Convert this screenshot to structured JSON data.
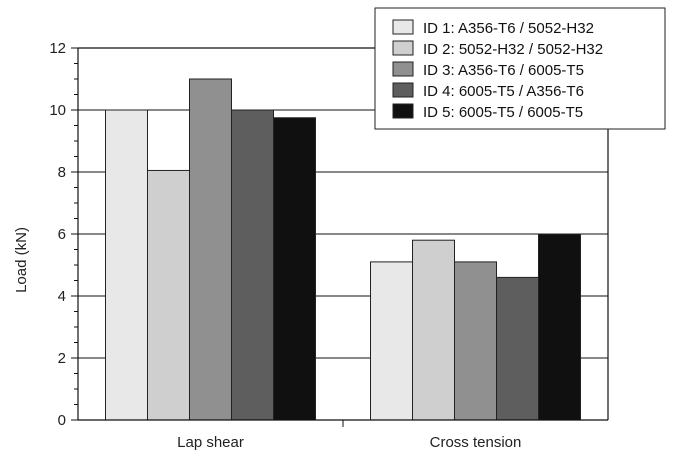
{
  "chart_data": {
    "type": "bar",
    "ylabel": "Load (kN)",
    "ylim": [
      0,
      12
    ],
    "yticks": [
      "0",
      "2",
      "4",
      "6",
      "8",
      "10",
      "12"
    ],
    "categories": [
      "Lap shear",
      "Cross tension"
    ],
    "grid": "horizontal",
    "legend_position": "top-right",
    "series": [
      {
        "name": "ID 1:  A356-T6 / 5052-H32",
        "color": "#e8e8e8",
        "values": [
          10.0,
          5.1
        ]
      },
      {
        "name": "ID 2:  5052-H32 / 5052-H32",
        "color": "#cfcfcf",
        "values": [
          8.05,
          5.8
        ]
      },
      {
        "name": "ID 3:  A356-T6 / 6005-T5",
        "color": "#909090",
        "values": [
          11.0,
          5.1
        ]
      },
      {
        "name": "ID 4:  6005-T5 / A356-T6",
        "color": "#5e5e5e",
        "values": [
          10.0,
          4.6
        ]
      },
      {
        "name": "ID 5:  6005-T5 / 6005-T5",
        "color": "#101010",
        "values": [
          9.75,
          6.0
        ]
      }
    ]
  }
}
